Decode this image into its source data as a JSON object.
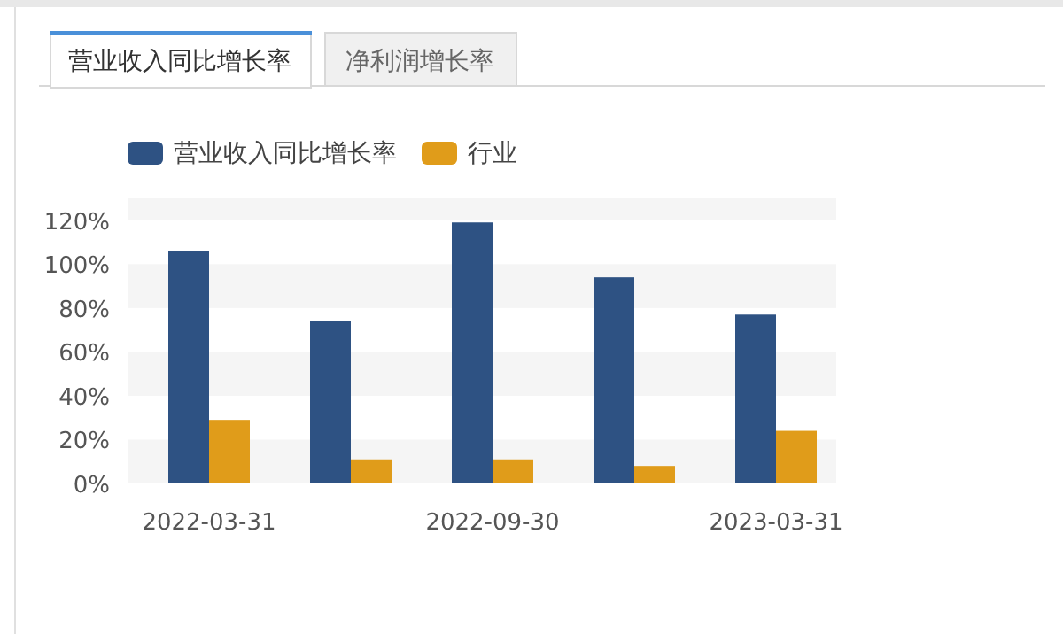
{
  "chart_data": {
    "type": "bar",
    "categories": [
      "2022-03-31",
      null,
      "2022-09-30",
      null,
      "2023-03-31"
    ],
    "series": [
      {
        "name": "营业收入同比增长率",
        "color": "#2e5283",
        "values": [
          106,
          74,
          119,
          94,
          77
        ]
      },
      {
        "name": "行业",
        "color": "#e09c1a",
        "values": [
          29,
          11,
          11,
          8,
          24
        ]
      }
    ],
    "ylim": [
      0,
      130
    ],
    "yticks": [
      {
        "value": 0,
        "label": "0%"
      },
      {
        "value": 20,
        "label": "20%"
      },
      {
        "value": 40,
        "label": "40%"
      },
      {
        "value": 60,
        "label": "60%"
      },
      {
        "value": 80,
        "label": "80%"
      },
      {
        "value": 100,
        "label": "100%"
      },
      {
        "value": 120,
        "label": "120%"
      }
    ],
    "bands": [
      {
        "axis": "y",
        "from": 0,
        "to": 20,
        "color": "#f5f5f5"
      },
      {
        "axis": "y",
        "from": 40,
        "to": 60,
        "color": "#f5f5f5"
      },
      {
        "axis": "y",
        "from": 80,
        "to": 100,
        "color": "#f5f5f5"
      },
      {
        "axis": "y",
        "from": 120,
        "to": 130,
        "color": "#f5f5f5"
      }
    ],
    "legend": "top left",
    "annotations": [
      "营业收入同比增长率",
      "净利润增长率"
    ]
  }
}
